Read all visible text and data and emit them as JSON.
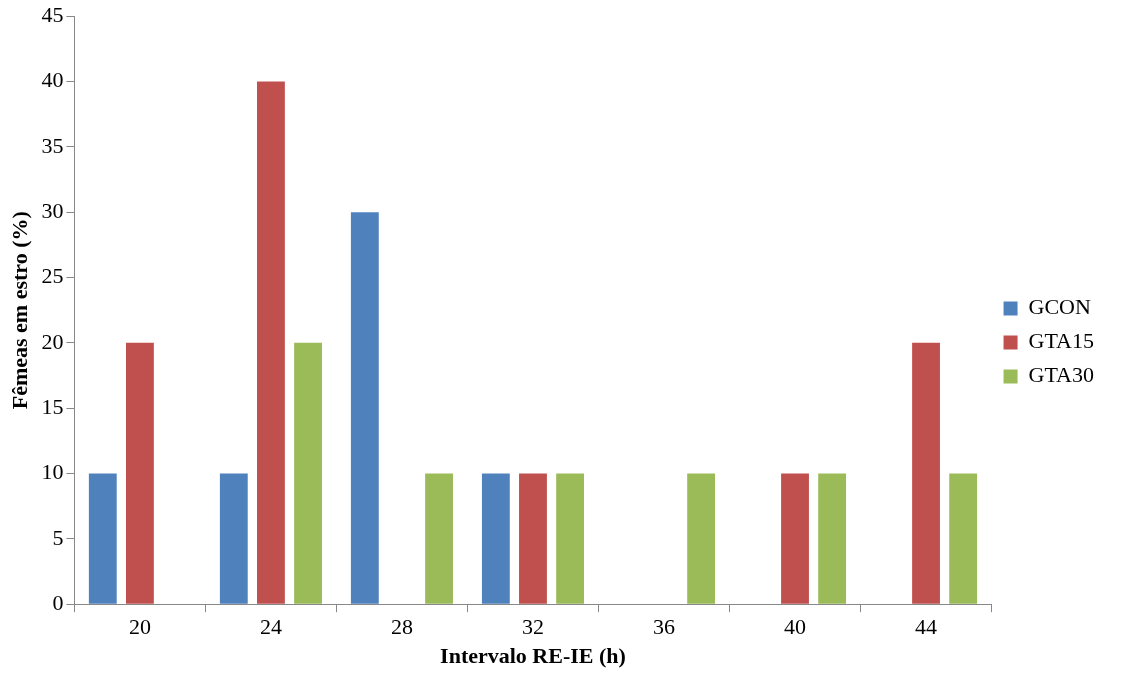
{
  "chart_data": {
    "type": "bar",
    "xlabel": "Intervalo RE-IE (h)",
    "ylabel": "Fêmeas em estro (%)",
    "categories": [
      "20",
      "24",
      "28",
      "32",
      "36",
      "40",
      "44"
    ],
    "series": [
      {
        "name": "GCON",
        "color": "#4f81bd",
        "values": [
          10,
          10,
          30,
          10,
          0,
          0,
          0
        ]
      },
      {
        "name": "GTA15",
        "color": "#c0504d",
        "values": [
          20,
          40,
          0,
          10,
          0,
          10,
          20
        ]
      },
      {
        "name": "GTA30",
        "color": "#9bbb59",
        "values": [
          0,
          20,
          10,
          10,
          10,
          10,
          10
        ]
      }
    ],
    "ylim": [
      0,
      45
    ],
    "yticks": [
      0,
      5,
      10,
      15,
      20,
      25,
      30,
      35,
      40,
      45
    ],
    "grid": false,
    "legend": "right"
  }
}
